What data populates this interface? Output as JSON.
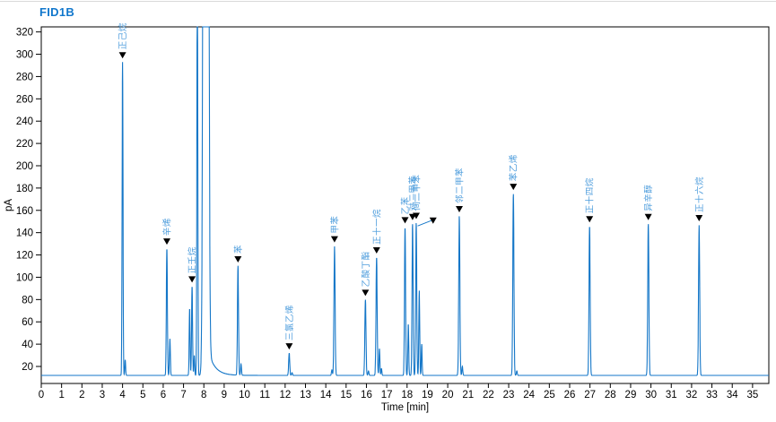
{
  "window": {
    "title": "FID1B"
  },
  "colors": {
    "trace": "#1577c8",
    "peak_label": "#4c9cdc",
    "title": "#1177cc",
    "axis": "#000000",
    "arrow": "#000000"
  },
  "chart_data": {
    "type": "line",
    "title": "FID1B",
    "xlabel": "Time [min]",
    "ylabel": "pA",
    "xlim": [
      0,
      35.8
    ],
    "ylim": [
      4.74,
      324.53
    ],
    "x_ticks": [
      0,
      1,
      2,
      3,
      4,
      5,
      6,
      7,
      8,
      9,
      10,
      11,
      12,
      13,
      14,
      15,
      16,
      17,
      18,
      19,
      20,
      21,
      22,
      23,
      24,
      25,
      26,
      27,
      28,
      29,
      30,
      31,
      32,
      33,
      34,
      35
    ],
    "y_ticks": [
      20,
      40,
      60,
      80,
      100,
      120,
      140,
      160,
      180,
      200,
      220,
      240,
      260,
      280,
      300,
      320
    ],
    "grid": false,
    "baseline_pA": 12,
    "peaks": [
      {
        "t": 4.0,
        "apex": 293,
        "sigma": 0.022,
        "label": "正己烷"
      },
      {
        "t": 4.13,
        "apex": 26,
        "sigma": 0.02
      },
      {
        "t": 6.18,
        "apex": 126,
        "sigma": 0.025,
        "label": "辛烯"
      },
      {
        "t": 6.33,
        "apex": 45,
        "sigma": 0.022
      },
      {
        "t": 7.3,
        "apex": 72,
        "sigma": 0.022
      },
      {
        "t": 7.42,
        "apex": 92,
        "sigma": 0.024,
        "label": "正壬烷"
      },
      {
        "t": 7.53,
        "apex": 30,
        "sigma": 0.02
      },
      {
        "t": 7.68,
        "apex": 400,
        "sigma": 0.022
      },
      {
        "t": 8.1,
        "apex": 5000,
        "sigma": 0.07
      },
      {
        "t": 9.68,
        "apex": 110,
        "sigma": 0.026,
        "label": "苯"
      },
      {
        "t": 9.83,
        "apex": 22,
        "sigma": 0.022
      },
      {
        "t": 12.2,
        "apex": 32,
        "sigma": 0.026,
        "label": "三氯乙烯"
      },
      {
        "t": 12.34,
        "apex": 14.5,
        "sigma": 0.022
      },
      {
        "t": 14.3,
        "apex": 17,
        "sigma": 0.022
      },
      {
        "t": 14.43,
        "apex": 128,
        "sigma": 0.028,
        "label": "甲苯"
      },
      {
        "t": 15.95,
        "apex": 80,
        "sigma": 0.028,
        "label": "乙酸丁酯"
      },
      {
        "t": 16.1,
        "apex": 16,
        "sigma": 0.022
      },
      {
        "t": 16.5,
        "apex": 118,
        "sigma": 0.028,
        "label": "正十一烷"
      },
      {
        "t": 16.64,
        "apex": 36,
        "sigma": 0.022
      },
      {
        "t": 16.74,
        "apex": 18,
        "sigma": 0.02
      },
      {
        "t": 17.9,
        "apex": 145,
        "sigma": 0.026,
        "label": "乙苯"
      },
      {
        "t": 18.06,
        "apex": 58,
        "sigma": 0.022
      },
      {
        "t": 18.27,
        "apex": 148,
        "sigma": 0.026,
        "label": "对二甲苯"
      },
      {
        "t": 18.45,
        "apex": 149,
        "sigma": 0.026,
        "label": "间二甲苯"
      },
      {
        "t": 18.6,
        "apex": 88,
        "sigma": 0.022
      },
      {
        "t": 18.72,
        "apex": 40,
        "sigma": 0.02
      },
      {
        "t": 20.57,
        "apex": 155,
        "sigma": 0.028,
        "label": "邻二甲苯"
      },
      {
        "t": 20.72,
        "apex": 20,
        "sigma": 0.022
      },
      {
        "t": 23.23,
        "apex": 175,
        "sigma": 0.028,
        "label": "苯乙烯"
      },
      {
        "t": 23.4,
        "apex": 16,
        "sigma": 0.022
      },
      {
        "t": 26.98,
        "apex": 146,
        "sigma": 0.028,
        "label": "正十四烷"
      },
      {
        "t": 29.87,
        "apex": 148,
        "sigma": 0.028,
        "label": "异辛醇"
      },
      {
        "t": 32.37,
        "apex": 147,
        "sigma": 0.028,
        "label": "正十六烷"
      }
    ],
    "solvent_tail": {
      "t0": 8.22,
      "amp": 22,
      "tau": 0.32
    },
    "cluster_leader": {
      "from": {
        "t": 18.52,
        "pA": 146
      },
      "to": {
        "t": 19.22,
        "pA": 151
      },
      "arrow_t": 19.28,
      "arrow_pA": 148
    }
  }
}
